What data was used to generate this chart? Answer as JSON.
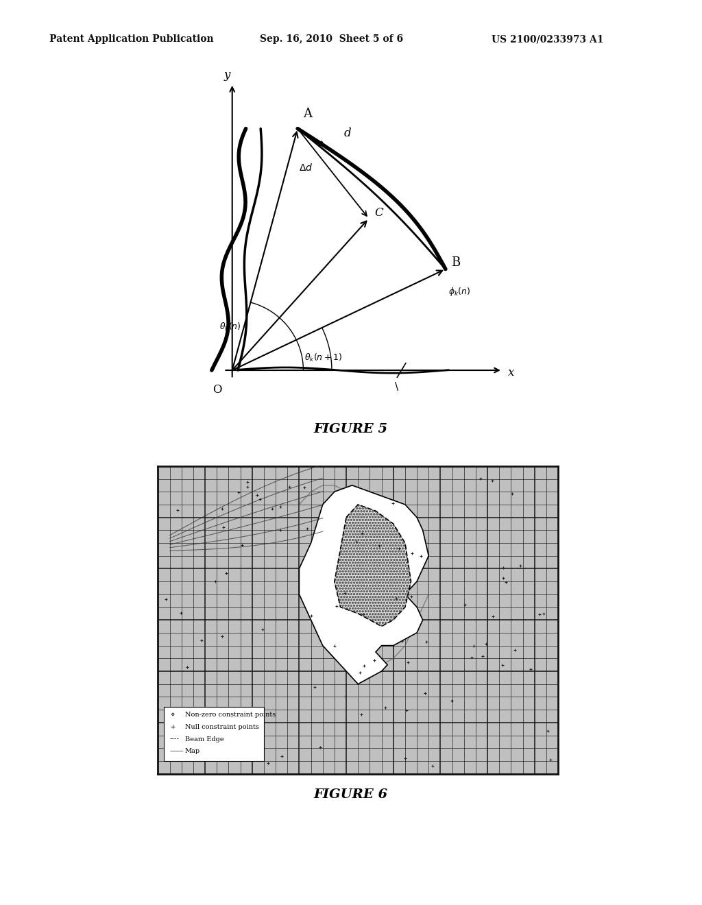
{
  "header_left": "Patent Application Publication",
  "header_center": "Sep. 16, 2010  Sheet 5 of 6",
  "header_right": "US 2100/0233973 A1",
  "fig5_caption": "FIGURE 5",
  "fig6_caption": "FIGURE 6",
  "bg_color": "#ffffff",
  "text_color": "#111111",
  "grid_color": "#333333",
  "fig6_bg": "#cccccc",
  "legend_items": [
    {
      "sym": "◆",
      "label": "Non-zero constraint points"
    },
    {
      "sym": "+",
      "label": "Null constraint points"
    },
    {
      "sym": "----",
      "label": "Beam Edge"
    },
    {
      "sym": "——",
      "label": "Map"
    }
  ]
}
